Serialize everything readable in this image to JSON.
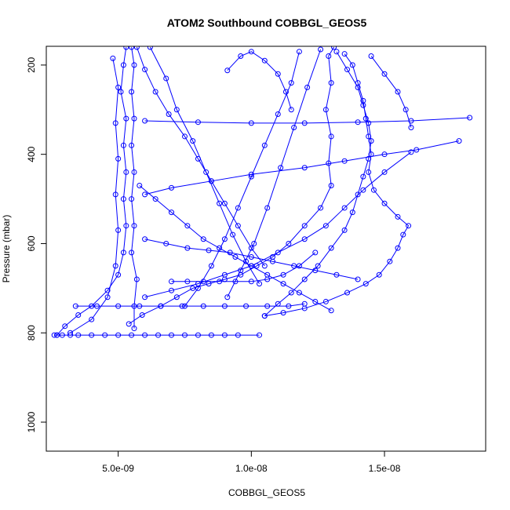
{
  "chart_data": {
    "type": "scatter",
    "title": "ATOM2 Southbound COBBGL_GEOS5",
    "xlabel": "COBBGL_GEOS5",
    "ylabel": "Pressure (mbar)",
    "xlim": [
      2.3e-09,
      1.88e-08
    ],
    "ylim": [
      1065,
      158
    ],
    "y_reversed": true,
    "x_ticks": [
      5e-09,
      1e-08,
      1.5e-08
    ],
    "x_tick_labels": [
      "5.0e-09",
      "1.0e-08",
      "1.5e-08"
    ],
    "y_ticks": [
      200,
      400,
      600,
      800,
      1000
    ],
    "y_tick_labels": [
      "200",
      "400",
      "600",
      "800",
      "1000"
    ],
    "grid": false,
    "legend": "none",
    "colors": {
      "series": "#0000ff",
      "frame": "#000000"
    },
    "marker": "open-circle",
    "line": "connected",
    "series": [
      {
        "points": [
          [
            2.6e-09,
            805
          ],
          [
            2.9e-09,
            805
          ],
          [
            3.5e-09,
            805
          ],
          [
            4.5e-09,
            805
          ],
          [
            5.5e-09,
            805
          ],
          [
            6.5e-09,
            805
          ],
          [
            7.5e-09,
            805
          ],
          [
            8.5e-09,
            805
          ],
          [
            9.5e-09,
            805
          ],
          [
            1.03e-08,
            805
          ],
          [
            9e-09,
            805
          ],
          [
            8e-09,
            805
          ],
          [
            7e-09,
            805
          ],
          [
            6e-09,
            805
          ],
          [
            5e-09,
            805
          ],
          [
            4e-09,
            805
          ],
          [
            3.2e-09,
            805
          ],
          [
            2.7e-09,
            805
          ]
        ]
      },
      {
        "points": [
          [
            2.7e-09,
            805
          ],
          [
            3e-09,
            785
          ],
          [
            3.5e-09,
            760
          ],
          [
            4e-09,
            740
          ],
          [
            4.6e-09,
            705
          ],
          [
            5e-09,
            670
          ],
          [
            5.2e-09,
            620
          ],
          [
            5.3e-09,
            560
          ],
          [
            5.2e-09,
            500
          ],
          [
            5.3e-09,
            440
          ],
          [
            5.2e-09,
            380
          ],
          [
            5.3e-09,
            320
          ],
          [
            5.1e-09,
            260
          ],
          [
            5.2e-09,
            200
          ],
          [
            5.3e-09,
            160
          ]
        ]
      },
      {
        "points": [
          [
            5.6e-09,
            790
          ],
          [
            5.6e-09,
            740
          ],
          [
            5.7e-09,
            680
          ],
          [
            5.5e-09,
            620
          ],
          [
            5.6e-09,
            560
          ],
          [
            5.5e-09,
            500
          ],
          [
            5.6e-09,
            440
          ],
          [
            5.5e-09,
            380
          ],
          [
            5.6e-09,
            320
          ],
          [
            5.5e-09,
            260
          ],
          [
            5.6e-09,
            200
          ],
          [
            5.5e-09,
            160
          ]
        ]
      },
      {
        "points": [
          [
            5.4e-09,
            780
          ],
          [
            5.9e-09,
            760
          ],
          [
            6.6e-09,
            740
          ],
          [
            7.2e-09,
            720
          ],
          [
            7.8e-09,
            700
          ],
          [
            8.4e-09,
            690
          ],
          [
            9e-09,
            680
          ],
          [
            9.6e-09,
            670
          ],
          [
            1.02e-08,
            650
          ],
          [
            1.08e-08,
            630
          ],
          [
            1.14e-08,
            600
          ],
          [
            1.2e-08,
            560
          ],
          [
            1.26e-08,
            520
          ],
          [
            1.3e-08,
            470
          ],
          [
            1.29e-08,
            420
          ],
          [
            1.3e-08,
            360
          ],
          [
            1.28e-08,
            300
          ],
          [
            1.3e-08,
            240
          ],
          [
            1.29e-08,
            180
          ],
          [
            1.31e-08,
            160
          ]
        ]
      },
      {
        "points": [
          [
            3.4e-09,
            740
          ],
          [
            4.2e-09,
            740
          ],
          [
            5e-09,
            740
          ],
          [
            5.8e-09,
            740
          ],
          [
            6.6e-09,
            740
          ],
          [
            7.4e-09,
            740
          ],
          [
            8.2e-09,
            740
          ],
          [
            9e-09,
            740
          ],
          [
            9.8e-09,
            740
          ],
          [
            1.06e-08,
            740
          ],
          [
            1.14e-08,
            740
          ],
          [
            1.2e-08,
            735
          ]
        ]
      },
      {
        "points": [
          [
            7e-09,
            685
          ],
          [
            7.6e-09,
            685
          ],
          [
            8.2e-09,
            685
          ],
          [
            8.8e-09,
            685
          ],
          [
            9.4e-09,
            685
          ],
          [
            1e-08,
            685
          ],
          [
            1.06e-08,
            680
          ],
          [
            1.12e-08,
            670
          ],
          [
            1.18e-08,
            650
          ],
          [
            1.24e-08,
            620
          ]
        ]
      },
      {
        "points": [
          [
            1.05e-08,
            762
          ],
          [
            1.12e-08,
            755
          ],
          [
            1.2e-08,
            745
          ],
          [
            1.28e-08,
            730
          ],
          [
            1.36e-08,
            710
          ],
          [
            1.43e-08,
            690
          ],
          [
            1.48e-08,
            670
          ],
          [
            1.52e-08,
            640
          ],
          [
            1.55e-08,
            610
          ],
          [
            1.57e-08,
            580
          ],
          [
            1.59e-08,
            560
          ],
          [
            1.55e-08,
            540
          ],
          [
            1.5e-08,
            510
          ],
          [
            1.46e-08,
            480
          ],
          [
            1.44e-08,
            440
          ],
          [
            1.45e-08,
            400
          ],
          [
            1.44e-08,
            360
          ],
          [
            1.43e-08,
            320
          ],
          [
            1.42e-08,
            280
          ],
          [
            1.4e-08,
            240
          ],
          [
            1.38e-08,
            200
          ],
          [
            1.35e-08,
            175
          ]
        ]
      },
      {
        "points": [
          [
            1.82e-08,
            318
          ],
          [
            1.6e-08,
            325
          ],
          [
            1.4e-08,
            328
          ],
          [
            1.2e-08,
            330
          ],
          [
            1e-08,
            330
          ],
          [
            8e-09,
            328
          ],
          [
            6e-09,
            325
          ]
        ]
      },
      {
        "points": [
          [
            1.78e-08,
            370
          ],
          [
            1.62e-08,
            390
          ],
          [
            1.5e-08,
            400
          ],
          [
            1.35e-08,
            415
          ],
          [
            1.2e-08,
            430
          ],
          [
            1e-08,
            445
          ],
          [
            8.5e-09,
            460
          ],
          [
            7e-09,
            475
          ],
          [
            6e-09,
            490
          ]
        ]
      },
      {
        "points": [
          [
            1.6e-08,
            395
          ],
          [
            1.5e-08,
            440
          ],
          [
            1.42e-08,
            480
          ],
          [
            1.35e-08,
            520
          ],
          [
            1.28e-08,
            560
          ],
          [
            1.2e-08,
            590
          ],
          [
            1.1e-08,
            620
          ],
          [
            1e-08,
            650
          ],
          [
            9e-09,
            670
          ],
          [
            8e-09,
            690
          ],
          [
            7e-09,
            705
          ],
          [
            6e-09,
            720
          ]
        ]
      },
      {
        "points": [
          [
            5.7e-09,
            160
          ],
          [
            6e-09,
            210
          ],
          [
            6.4e-09,
            260
          ],
          [
            6.9e-09,
            310
          ],
          [
            7.5e-09,
            360
          ],
          [
            8e-09,
            410
          ],
          [
            8.5e-09,
            460
          ],
          [
            9e-09,
            510
          ],
          [
            9.5e-09,
            560
          ],
          [
            1e-08,
            610
          ],
          [
            1.05e-08,
            650
          ]
        ]
      },
      {
        "points": [
          [
            6.2e-09,
            160
          ],
          [
            6.8e-09,
            230
          ],
          [
            7.2e-09,
            300
          ],
          [
            7.8e-09,
            370
          ],
          [
            8.3e-09,
            440
          ],
          [
            8.8e-09,
            510
          ],
          [
            9.3e-09,
            580
          ],
          [
            9.8e-09,
            640
          ],
          [
            1.03e-08,
            690
          ]
        ]
      },
      {
        "points": [
          [
            1.18e-08,
            170
          ],
          [
            1.15e-08,
            240
          ],
          [
            1.1e-08,
            310
          ],
          [
            1.05e-08,
            380
          ],
          [
            1e-08,
            450
          ],
          [
            9.5e-09,
            520
          ],
          [
            9e-09,
            590
          ],
          [
            8.5e-09,
            650
          ],
          [
            8e-09,
            700
          ],
          [
            7.5e-09,
            740
          ]
        ]
      },
      {
        "points": [
          [
            1.26e-08,
            165
          ],
          [
            1.21e-08,
            250
          ],
          [
            1.16e-08,
            340
          ],
          [
            1.11e-08,
            430
          ],
          [
            1.06e-08,
            520
          ],
          [
            1.01e-08,
            600
          ],
          [
            9.6e-09,
            660
          ],
          [
            9.1e-09,
            720
          ]
        ]
      },
      {
        "points": [
          [
            9.1e-09,
            212
          ],
          [
            9.6e-09,
            180
          ],
          [
            1e-08,
            170
          ],
          [
            1.05e-08,
            190
          ],
          [
            1.1e-08,
            220
          ],
          [
            1.13e-08,
            260
          ],
          [
            1.15e-08,
            300
          ]
        ]
      },
      {
        "points": [
          [
            1.32e-08,
            170
          ],
          [
            1.36e-08,
            210
          ],
          [
            1.4e-08,
            250
          ],
          [
            1.42e-08,
            290
          ],
          [
            1.44e-08,
            330
          ],
          [
            1.45e-08,
            370
          ],
          [
            1.44e-08,
            410
          ],
          [
            1.42e-08,
            450
          ],
          [
            1.4e-08,
            490
          ],
          [
            1.38e-08,
            530
          ],
          [
            1.35e-08,
            570
          ],
          [
            1.3e-08,
            610
          ],
          [
            1.25e-08,
            650
          ],
          [
            1.2e-08,
            680
          ],
          [
            1.15e-08,
            710
          ],
          [
            1.1e-08,
            735
          ],
          [
            1.05e-08,
            762
          ]
        ]
      },
      {
        "points": [
          [
            1.45e-08,
            180
          ],
          [
            1.5e-08,
            220
          ],
          [
            1.55e-08,
            260
          ],
          [
            1.58e-08,
            300
          ],
          [
            1.6e-08,
            340
          ]
        ]
      },
      {
        "points": [
          [
            4.8e-09,
            185
          ],
          [
            5e-09,
            250
          ],
          [
            4.9e-09,
            330
          ],
          [
            5e-09,
            410
          ],
          [
            4.9e-09,
            490
          ],
          [
            5e-09,
            570
          ],
          [
            4.9e-09,
            650
          ],
          [
            4.6e-09,
            720
          ],
          [
            4e-09,
            770
          ],
          [
            3.2e-09,
            800
          ]
        ]
      },
      {
        "points": [
          [
            6e-09,
            590
          ],
          [
            6.8e-09,
            600
          ],
          [
            7.6e-09,
            610
          ],
          [
            8.4e-09,
            615
          ],
          [
            9.2e-09,
            620
          ],
          [
            1e-08,
            630
          ],
          [
            1.08e-08,
            640
          ],
          [
            1.16e-08,
            650
          ],
          [
            1.24e-08,
            660
          ],
          [
            1.32e-08,
            670
          ],
          [
            1.4e-08,
            680
          ]
        ]
      },
      {
        "points": [
          [
            5.8e-09,
            470
          ],
          [
            6.4e-09,
            500
          ],
          [
            7e-09,
            530
          ],
          [
            7.6e-09,
            560
          ],
          [
            8.2e-09,
            590
          ],
          [
            8.8e-09,
            610
          ],
          [
            9.4e-09,
            630
          ],
          [
            1e-08,
            650
          ],
          [
            1.06e-08,
            670
          ],
          [
            1.12e-08,
            690
          ],
          [
            1.18e-08,
            710
          ],
          [
            1.24e-08,
            730
          ],
          [
            1.3e-08,
            750
          ]
        ]
      }
    ]
  }
}
